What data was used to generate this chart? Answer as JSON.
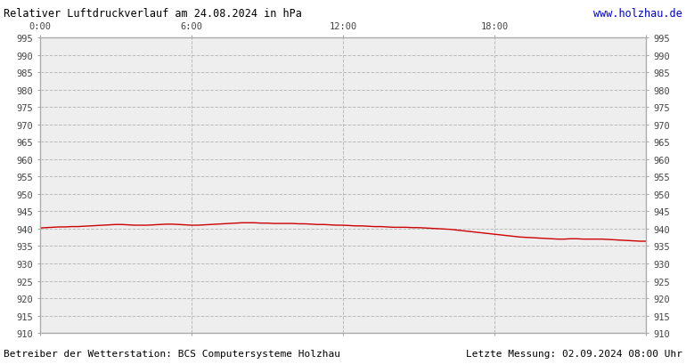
{
  "title": "Relativer Luftdruckverlauf am 24.08.2024 in hPa",
  "url_text": "www.holzhau.de",
  "footer_left": "Betreiber der Wetterstation: BCS Computersysteme Holzhau",
  "footer_right": "Letzte Messung: 02.09.2024 08:00 Uhr",
  "ymin": 910,
  "ymax": 995,
  "ytick_interval": 5,
  "x_tick_positions": [
    0,
    6,
    12,
    18,
    24
  ],
  "x_tick_labels": [
    "0:00",
    "6:00",
    "12:00",
    "18:00",
    ""
  ],
  "background_color": "#ffffff",
  "plot_bg_color": "#eeeeee",
  "grid_color": "#bbbbbb",
  "line_color": "#cc0000",
  "title_color": "#000000",
  "url_color": "#0000cc",
  "footer_color": "#000000",
  "pressure_x": [
    0,
    0.25,
    0.5,
    0.75,
    1.0,
    1.25,
    1.5,
    1.75,
    2.0,
    2.25,
    2.5,
    2.75,
    3.0,
    3.25,
    3.5,
    3.75,
    4.0,
    4.25,
    4.5,
    4.75,
    5.0,
    5.25,
    5.5,
    5.75,
    6.0,
    6.25,
    6.5,
    6.75,
    7.0,
    7.25,
    7.5,
    7.75,
    8.0,
    8.25,
    8.5,
    8.75,
    9.0,
    9.25,
    9.5,
    9.75,
    10.0,
    10.25,
    10.5,
    10.75,
    11.0,
    11.25,
    11.5,
    11.75,
    12.0,
    12.25,
    12.5,
    12.75,
    13.0,
    13.25,
    13.5,
    13.75,
    14.0,
    14.25,
    14.5,
    14.75,
    15.0,
    15.25,
    15.5,
    15.75,
    16.0,
    16.25,
    16.5,
    16.75,
    17.0,
    17.25,
    17.5,
    17.75,
    18.0,
    18.25,
    18.5,
    18.75,
    19.0,
    19.25,
    19.5,
    19.75,
    20.0,
    20.25,
    20.5,
    20.75,
    21.0,
    21.25,
    21.5,
    21.75,
    22.0,
    22.25,
    22.5,
    22.75,
    23.0,
    23.25,
    23.5,
    23.75,
    24.0
  ],
  "pressure_y": [
    940.2,
    940.3,
    940.4,
    940.5,
    940.5,
    940.6,
    940.6,
    940.7,
    940.8,
    940.9,
    941.0,
    941.1,
    941.2,
    941.2,
    941.1,
    941.0,
    941.0,
    941.0,
    941.1,
    941.2,
    941.3,
    941.3,
    941.2,
    941.1,
    941.0,
    941.0,
    941.1,
    941.2,
    941.3,
    941.4,
    941.5,
    941.6,
    941.7,
    941.7,
    941.7,
    941.6,
    941.6,
    941.5,
    941.5,
    941.5,
    941.5,
    941.4,
    941.4,
    941.3,
    941.2,
    941.2,
    941.1,
    941.0,
    941.0,
    940.9,
    940.8,
    940.8,
    940.7,
    940.6,
    940.6,
    940.5,
    940.4,
    940.4,
    940.4,
    940.3,
    940.3,
    940.2,
    940.1,
    940.0,
    939.9,
    939.8,
    939.6,
    939.4,
    939.2,
    939.0,
    938.8,
    938.6,
    938.4,
    938.2,
    938.0,
    937.8,
    937.6,
    937.5,
    937.4,
    937.3,
    937.2,
    937.1,
    937.0,
    937.0,
    937.1,
    937.1,
    937.0,
    937.0,
    937.0,
    937.0,
    936.9,
    936.8,
    936.7,
    936.6,
    936.5,
    936.4,
    936.4
  ]
}
